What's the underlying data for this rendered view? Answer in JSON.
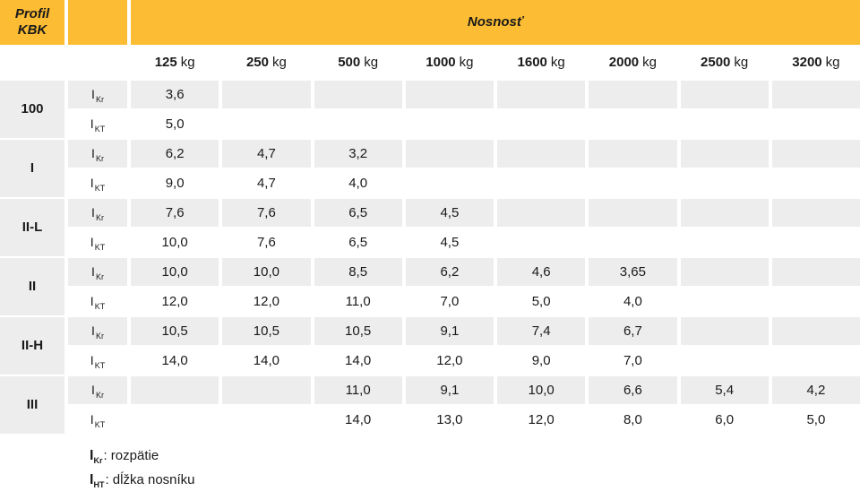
{
  "table": {
    "corner": {
      "line1": "Profil",
      "line2": "KBK"
    },
    "span_title": "Nosnosť",
    "load_headers": [
      {
        "num": "125",
        "unit": "kg"
      },
      {
        "num": "250",
        "unit": "kg"
      },
      {
        "num": "500",
        "unit": "kg"
      },
      {
        "num": "1000",
        "unit": "kg"
      },
      {
        "num": "1600",
        "unit": "kg"
      },
      {
        "num": "2000",
        "unit": "kg"
      },
      {
        "num": "2500",
        "unit": "kg"
      },
      {
        "num": "3200",
        "unit": "kg"
      }
    ],
    "sub_labels": {
      "kr": {
        "base": "I",
        "sub": "Kr"
      },
      "kt": {
        "base": "I",
        "sub": "KT"
      }
    },
    "rows": [
      {
        "profile": "100",
        "kr": [
          "3,6",
          "",
          "",
          "",
          "",
          "",
          "",
          ""
        ],
        "kt": [
          "5,0",
          "",
          "",
          "",
          "",
          "",
          "",
          ""
        ]
      },
      {
        "profile": "I",
        "kr": [
          "6,2",
          "4,7",
          "3,2",
          "",
          "",
          "",
          "",
          ""
        ],
        "kt": [
          "9,0",
          "4,7",
          "4,0",
          "",
          "",
          "",
          "",
          ""
        ]
      },
      {
        "profile": "II-L",
        "kr": [
          "7,6",
          "7,6",
          "6,5",
          "4,5",
          "",
          "",
          "",
          ""
        ],
        "kt": [
          "10,0",
          "7,6",
          "6,5",
          "4,5",
          "",
          "",
          "",
          ""
        ]
      },
      {
        "profile": "II",
        "kr": [
          "10,0",
          "10,0",
          "8,5",
          "6,2",
          "4,6",
          "3,65",
          "",
          ""
        ],
        "kt": [
          "12,0",
          "12,0",
          "11,0",
          "7,0",
          "5,0",
          "4,0",
          "",
          ""
        ]
      },
      {
        "profile": "II-H",
        "kr": [
          "10,5",
          "10,5",
          "10,5",
          "9,1",
          "7,4",
          "6,7",
          "",
          ""
        ],
        "kt": [
          "14,0",
          "14,0",
          "14,0",
          "12,0",
          "9,0",
          "7,0",
          "",
          ""
        ]
      },
      {
        "profile": "III",
        "kr": [
          "",
          "",
          "11,0",
          "9,1",
          "10,0",
          "6,6",
          "5,4",
          "4,2"
        ],
        "kt": [
          "",
          "",
          "14,0",
          "13,0",
          "12,0",
          "8,0",
          "6,0",
          "5,0"
        ]
      }
    ],
    "legend": [
      {
        "symbol_base": "I",
        "symbol_sub": "Kr",
        "label": ": rozpätie"
      },
      {
        "symbol_base": "I",
        "symbol_sub": "HT",
        "label": ": dĺžka nosníku"
      }
    ],
    "colors": {
      "accent": "#FCBC33",
      "row_gray": "#EDEDED",
      "text": "#1A1A1A"
    }
  }
}
